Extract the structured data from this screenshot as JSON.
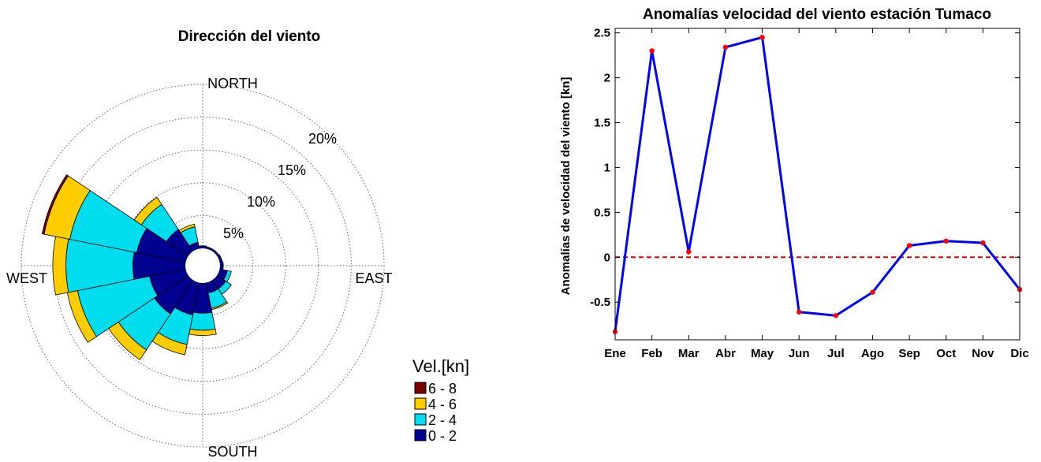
{
  "chart_data": [
    {
      "type": "polar-bar",
      "title": "Dirección del viento",
      "directions": [
        "NORTH",
        "EAST",
        "SOUTH",
        "WEST"
      ],
      "radial_ticks": [
        "5%",
        "10%",
        "15%",
        "20%"
      ],
      "rmax": 25,
      "legend_title": "Vel.[kn]",
      "legend": [
        {
          "label": "6 - 8",
          "color": "#7a0000"
        },
        {
          "label": "4 - 6",
          "color": "#ffcc00"
        },
        {
          "label": "2 - 4",
          "color": "#00ddee"
        },
        {
          "label": "0 - 2",
          "color": "#000090"
        }
      ],
      "sectors_deg": [
        0,
        22.5,
        45,
        67.5,
        90,
        112.5,
        135,
        157.5,
        180,
        202.5,
        225,
        247.5,
        270,
        292.5,
        315,
        337.5
      ],
      "series": [
        {
          "name": "0 - 2",
          "values": [
            0.4,
            0.3,
            0.3,
            0.4,
            0.5,
            1.2,
            1.6,
            1.6,
            4.6,
            5.0,
            6.2,
            5.6,
            8.0,
            7.6,
            4.0,
            1.0
          ]
        },
        {
          "name": "2 - 4",
          "values": [
            0.0,
            0.0,
            0.0,
            0.0,
            0.0,
            0.6,
            1.0,
            2.4,
            2.6,
            4.6,
            6.6,
            11.2,
            10.2,
            10.4,
            4.6,
            2.4
          ]
        },
        {
          "name": "4 - 6",
          "values": [
            0.0,
            0.0,
            0.0,
            0.0,
            0.0,
            0.0,
            0.0,
            0.2,
            0.8,
            1.6,
            1.8,
            1.6,
            2.0,
            4.0,
            1.3,
            0.4
          ]
        },
        {
          "name": "6 - 8",
          "values": [
            0.0,
            0.0,
            0.0,
            0.0,
            0.0,
            0.0,
            0.0,
            0.0,
            0.0,
            0.0,
            0.0,
            0.0,
            0.0,
            0.3,
            0.0,
            0.0
          ]
        }
      ]
    },
    {
      "type": "line",
      "title": "Anomalías velocidad del viento estación Tumaco",
      "xlabel": "",
      "ylabel": "Anomalías de velocidad del viento [kn]",
      "categories": [
        "Ene",
        "Feb",
        "Mar",
        "Abr",
        "May",
        "Jun",
        "Jul",
        "Ago",
        "Sep",
        "Oct",
        "Nov",
        "Dic"
      ],
      "values": [
        -0.83,
        2.3,
        0.06,
        2.34,
        2.45,
        -0.61,
        -0.65,
        -0.39,
        0.13,
        0.18,
        0.16,
        -0.36
      ],
      "ylim": [
        -0.92,
        2.55
      ],
      "yticks": [
        -0.5,
        0,
        0.5,
        1,
        1.5,
        2,
        2.5
      ],
      "reference_line": 0,
      "line_color": "#0000ff",
      "marker_color": "#ff0000",
      "reference_color": "#dd0000"
    }
  ]
}
